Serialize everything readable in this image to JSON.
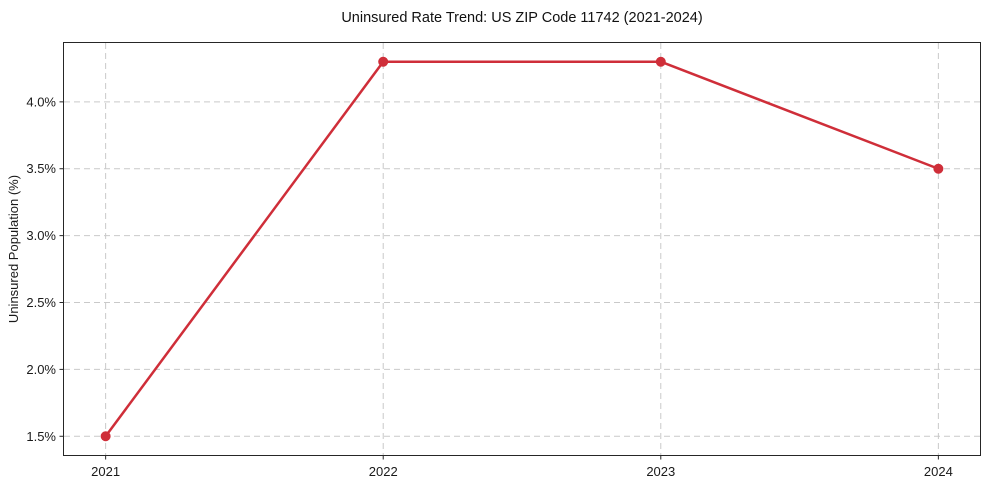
{
  "chart_data": {
    "type": "line",
    "title": "Uninsured Rate Trend: US ZIP Code 11742 (2021-2024)",
    "xlabel": "",
    "ylabel": "Uninsured Population (%)",
    "x": [
      2021,
      2022,
      2023,
      2024
    ],
    "values": [
      1.5,
      4.3,
      4.3,
      3.5
    ],
    "series_name": "Uninsured rate",
    "xticks": {
      "values": [
        2021,
        2022,
        2023,
        2024
      ],
      "labels": [
        "2021",
        "2022",
        "2023",
        "2024"
      ]
    },
    "yticks": {
      "values": [
        1.5,
        2.0,
        2.5,
        3.0,
        3.5,
        4.0
      ],
      "labels": [
        "1.5%",
        "2.0%",
        "2.5%",
        "3.0%",
        "3.5%",
        "4.0%"
      ]
    },
    "xlim": [
      2020.85,
      2024.15
    ],
    "ylim": [
      1.36,
      4.44
    ],
    "grid": true,
    "legend": "none",
    "marker": "circle",
    "colors": {
      "line": "#cf2e39",
      "marker": "#cf2e39",
      "grid": "#c9c9c9",
      "spine": "#262626",
      "text": "#1a1a1a",
      "background": "#ffffff"
    }
  }
}
